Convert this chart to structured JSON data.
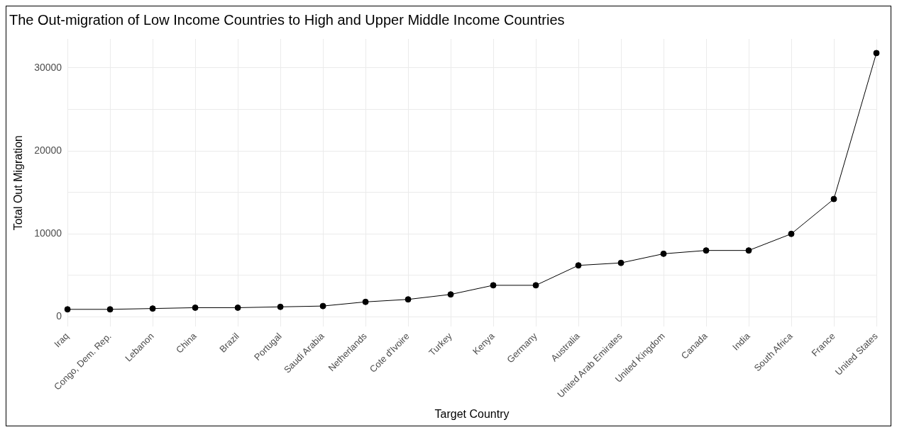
{
  "chart_data": {
    "type": "line",
    "title": "The Out-migration of Low Income Countries to High and Upper Middle Income Countries",
    "xlabel": "Target Country",
    "ylabel": "Total Out Migration",
    "categories": [
      "Iraq",
      "Congo, Dem. Rep.",
      "Lebanon",
      "China",
      "Brazil",
      "Portugal",
      "Saudi Arabia",
      "Netherlands",
      "Cote d'Ivoire",
      "Turkey",
      "Kenya",
      "Germany",
      "Australia",
      "United Arab Emirates",
      "United Kingdom",
      "Canada",
      "India",
      "South Africa",
      "France",
      "United States"
    ],
    "series": [
      {
        "color": "#000000",
        "values": [
          900,
          900,
          1000,
          1100,
          1100,
          1200,
          1300,
          1800,
          2100,
          2700,
          3800,
          3800,
          6200,
          6500,
          7600,
          8000,
          8000,
          10000,
          14200,
          31800
        ]
      }
    ],
    "ylim": [
      -1200,
      33500
    ],
    "yticks": [
      0,
      {
        "value": 5000,
        "label": null
      },
      10000,
      {
        "value": 15000,
        "label": null
      },
      20000,
      {
        "value": 25000,
        "label": null
      },
      30000
    ],
    "grid": true,
    "legend": false,
    "marker": "circle",
    "line_style": "solid"
  }
}
